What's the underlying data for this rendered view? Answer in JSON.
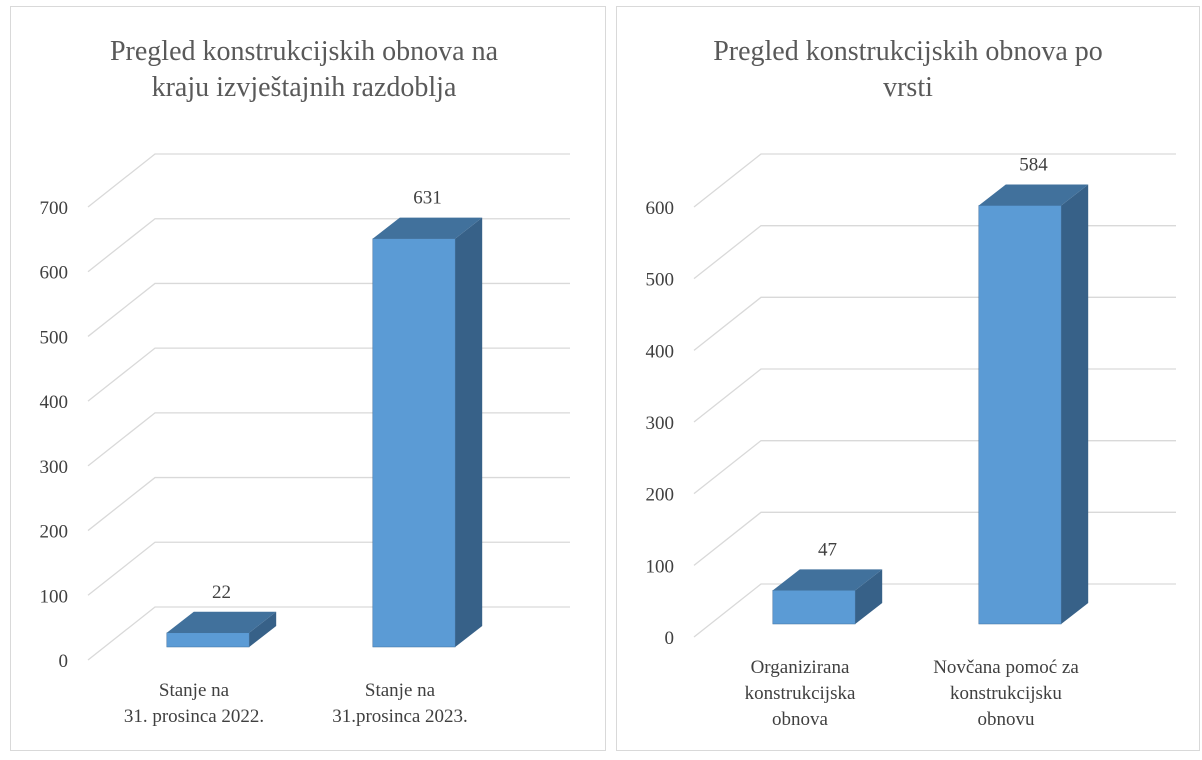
{
  "chart_data": [
    {
      "type": "bar3d",
      "title": "Pregled konstrukcijskih obnova na kraju izvještajnih razdoblja",
      "categories": [
        [
          "Stanje na",
          "31. prosinca 2022."
        ],
        [
          "Stanje na",
          "31.prosinca 2023."
        ]
      ],
      "values": [
        22,
        631
      ],
      "color": "#5b9bd5",
      "ylim": [
        0,
        700
      ],
      "yticks": [
        0,
        100,
        200,
        300,
        400,
        500,
        600,
        700
      ],
      "grid": true
    },
    {
      "type": "bar3d",
      "title": "Pregled konstrukcijskih obnova po vrsti",
      "categories": [
        [
          "Organizirana",
          "konstrukcijska",
          "obnova"
        ],
        [
          "Novčana pomoć za",
          "konstrukcijsku",
          "obnovu"
        ]
      ],
      "values": [
        47,
        584
      ],
      "color": "#5b9bd5",
      "ylim": [
        0,
        600
      ],
      "yticks": [
        0,
        100,
        200,
        300,
        400,
        500,
        600
      ],
      "grid": true
    }
  ]
}
